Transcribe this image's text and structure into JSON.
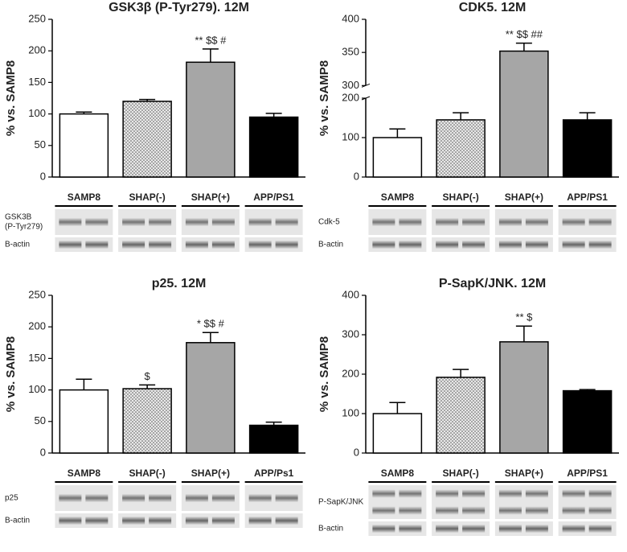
{
  "chart_data": [
    {
      "type": "bar",
      "title": "GSK3β (P-Tyr279). 12M",
      "ylabel": "% vs. SAMP8",
      "categories": [
        "SAMP8",
        "SHAP(-)",
        "SHAP(+)",
        "APP/PS1"
      ],
      "values": [
        100,
        120,
        182,
        95
      ],
      "errors": [
        3,
        3,
        21,
        6
      ],
      "annotations": [
        null,
        null,
        "** $$ #",
        null
      ],
      "colors": [
        "#ffffff",
        "#d9d9d9",
        "#a6a6a6",
        "#000000"
      ],
      "dotted": [
        false,
        true,
        false,
        false
      ],
      "ylim": [
        0,
        250
      ],
      "yticks": [
        0,
        50,
        100,
        150,
        200,
        250
      ],
      "blot": {
        "groups": [
          "SAMP8",
          "SHAP(-)",
          "SHAP(+)",
          "APP/PS1"
        ],
        "rows": [
          [
            "GSK3B",
            "(P-Tyr279)"
          ],
          [
            "B-actin"
          ]
        ]
      }
    },
    {
      "type": "bar",
      "title": "CDK5. 12M",
      "ylabel": "% vs. SAMP8",
      "categories": [
        "SAMP8",
        "SHAP(-)",
        "SHAP(+)",
        "APP/PS1"
      ],
      "values": [
        100,
        145,
        352,
        145
      ],
      "errors": [
        22,
        18,
        12,
        18
      ],
      "annotations": [
        null,
        null,
        "** $$ ##",
        null
      ],
      "colors": [
        "#ffffff",
        "#d9d9d9",
        "#a6a6a6",
        "#000000"
      ],
      "dotted": [
        false,
        true,
        false,
        false
      ],
      "ylim": [
        0,
        400
      ],
      "ybreak": [
        200,
        300
      ],
      "yticks": [
        0,
        100,
        200,
        300,
        350,
        400
      ],
      "blot": {
        "groups": [
          "SAMP8",
          "SHAP(-)",
          "SHAP(+)",
          "APP/PS1"
        ],
        "rows": [
          [
            "Cdk-5"
          ],
          [
            "B-actin"
          ]
        ]
      }
    },
    {
      "type": "bar",
      "title": "p25. 12M",
      "ylabel": "% vs. SAMP8",
      "categories": [
        "SAMP8",
        "SHAP(-)",
        "SHAP(+)",
        "APP/PS1"
      ],
      "values": [
        100,
        102,
        175,
        44
      ],
      "errors": [
        17,
        6,
        16,
        5
      ],
      "annotations": [
        null,
        "$",
        "* $$ #",
        null
      ],
      "colors": [
        "#ffffff",
        "#d9d9d9",
        "#a6a6a6",
        "#000000"
      ],
      "dotted": [
        false,
        true,
        false,
        false
      ],
      "ylim": [
        0,
        250
      ],
      "yticks": [
        0,
        50,
        100,
        150,
        200,
        250
      ],
      "blot": {
        "groups": [
          "SAMP8",
          "SHAP(-)",
          "SHAP(+)",
          "APP/Ps1"
        ],
        "rows": [
          [
            "p25"
          ],
          [
            "B-actin"
          ]
        ]
      }
    },
    {
      "type": "bar",
      "title": "P-SapK/JNK. 12M",
      "ylabel": "% vs. SAMP8",
      "categories": [
        "SAMP8",
        "SHAP(-)",
        "SHAP(+)",
        "APP/PS1"
      ],
      "values": [
        100,
        192,
        282,
        158
      ],
      "errors": [
        28,
        20,
        40,
        3
      ],
      "annotations": [
        null,
        null,
        "** $",
        null
      ],
      "colors": [
        "#ffffff",
        "#d9d9d9",
        "#a6a6a6",
        "#000000"
      ],
      "dotted": [
        false,
        true,
        false,
        false
      ],
      "ylim": [
        0,
        400
      ],
      "yticks": [
        0,
        100,
        200,
        300,
        400
      ],
      "blot": {
        "groups": [
          "SAMP8",
          "SHAP(-)",
          "SHAP(+)",
          "APP/PS1"
        ],
        "rows": [
          [
            "P-SapK/JNK"
          ],
          [
            "B-actin"
          ]
        ]
      }
    }
  ]
}
